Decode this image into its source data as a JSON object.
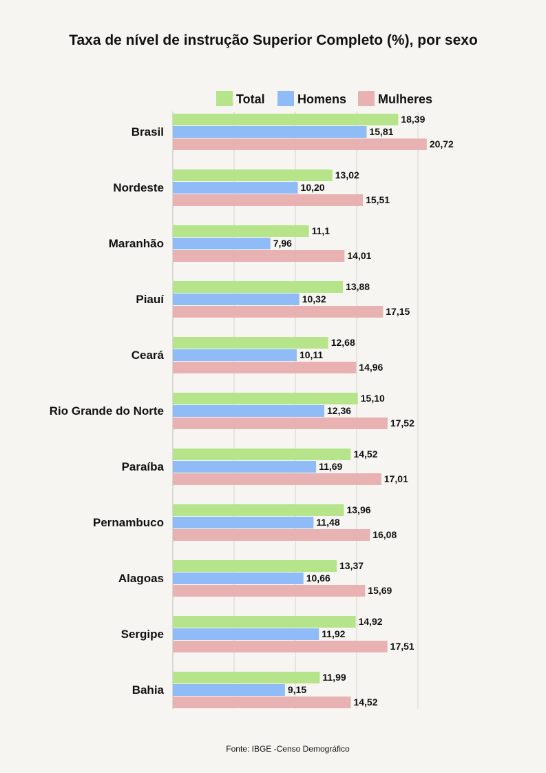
{
  "chart_data": {
    "type": "bar",
    "orientation": "horizontal",
    "title": "Taxa de nível de instrução Superior Completo (%), por sexo",
    "source": "Fonte: IBGE -Censo Demográfico",
    "categories": [
      "Brasil",
      "Nordeste",
      "Maranhão",
      "Piauí",
      "Ceará",
      "Rio Grande do Norte",
      "Paraíba",
      "Pernambuco",
      "Alagoas",
      "Sergipe",
      "Bahia"
    ],
    "series": [
      {
        "name": "Total",
        "color": "#b5e48a",
        "values": [
          18.39,
          13.02,
          11.1,
          13.88,
          12.68,
          15.1,
          14.52,
          13.96,
          13.37,
          14.92,
          11.99
        ],
        "labels": [
          "18,39",
          "13,02",
          "11,1",
          "13,88",
          "12,68",
          "15,10",
          "14,52",
          "13,96",
          "13,37",
          "14,92",
          "11,99"
        ]
      },
      {
        "name": "Homens",
        "color": "#8fbcf7",
        "values": [
          15.81,
          10.2,
          7.96,
          10.32,
          10.11,
          12.36,
          11.69,
          11.48,
          10.66,
          11.92,
          9.15
        ],
        "labels": [
          "15,81",
          "10,20",
          "7,96",
          "10,32",
          "10,11",
          "12,36",
          "11,69",
          "11,48",
          "10,66",
          "11,92",
          "9,15"
        ]
      },
      {
        "name": "Mulheres",
        "color": "#e8b2b2",
        "values": [
          20.72,
          15.51,
          14.01,
          17.15,
          14.96,
          17.52,
          17.01,
          16.08,
          15.69,
          17.51,
          14.52
        ],
        "labels": [
          "20,72",
          "15,51",
          "14,01",
          "17,15",
          "14,96",
          "17,52",
          "17,01",
          "16,08",
          "15,69",
          "17,51",
          "14,52"
        ]
      }
    ],
    "xlim": [
      0,
      20
    ],
    "grid": true,
    "gridlines": [
      5,
      10,
      15,
      20
    ],
    "legend_position": "top-right",
    "xlabel": "",
    "ylabel": ""
  }
}
